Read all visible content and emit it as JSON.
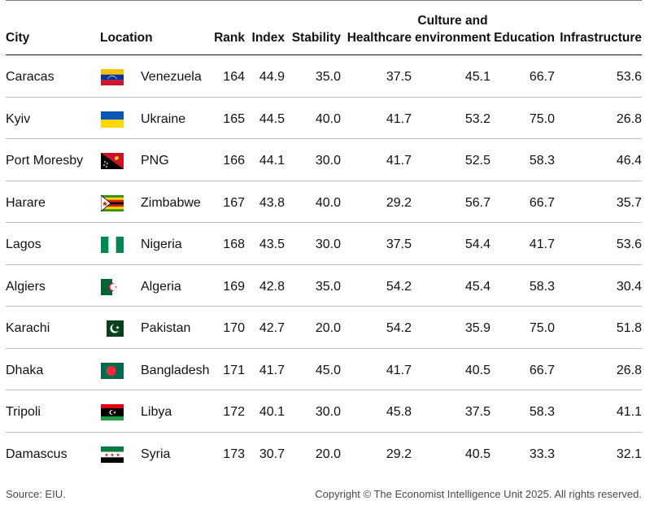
{
  "chart_data": {
    "type": "table",
    "columns": {
      "city": "City",
      "location": "Location",
      "rank": "Rank",
      "index": "Index",
      "stability": "Stability",
      "healthcare": "Healthcare",
      "culture_line1": "Culture and",
      "culture_line2": "environment",
      "education": "Education",
      "infrastructure": "Infrastructure"
    },
    "rows": [
      {
        "city": "Caracas",
        "location": "Venezuela",
        "flag": "venezuela-flag-icon",
        "rank": "164",
        "index": "44.9",
        "stability": "35.0",
        "healthcare": "37.5",
        "culture": "45.1",
        "education": "66.7",
        "infrastructure": "53.6"
      },
      {
        "city": "Kyiv",
        "location": "Ukraine",
        "flag": "ukraine-flag-icon",
        "rank": "165",
        "index": "44.5",
        "stability": "40.0",
        "healthcare": "41.7",
        "culture": "53.2",
        "education": "75.0",
        "infrastructure": "26.8"
      },
      {
        "city": "Port Moresby",
        "location": "PNG",
        "flag": "png-flag-icon",
        "rank": "166",
        "index": "44.1",
        "stability": "30.0",
        "healthcare": "41.7",
        "culture": "52.5",
        "education": "58.3",
        "infrastructure": "46.4"
      },
      {
        "city": "Harare",
        "location": "Zimbabwe",
        "flag": "zimbabwe-flag-icon",
        "rank": "167",
        "index": "43.8",
        "stability": "40.0",
        "healthcare": "29.2",
        "culture": "56.7",
        "education": "66.7",
        "infrastructure": "35.7"
      },
      {
        "city": "Lagos",
        "location": "Nigeria",
        "flag": "nigeria-flag-icon",
        "rank": "168",
        "index": "43.5",
        "stability": "30.0",
        "healthcare": "37.5",
        "culture": "54.4",
        "education": "41.7",
        "infrastructure": "53.6"
      },
      {
        "city": "Algiers",
        "location": "Algeria",
        "flag": "algeria-flag-icon",
        "rank": "169",
        "index": "42.8",
        "stability": "35.0",
        "healthcare": "54.2",
        "culture": "45.4",
        "education": "58.3",
        "infrastructure": "30.4"
      },
      {
        "city": "Karachi",
        "location": "Pakistan",
        "flag": "pakistan-flag-icon",
        "rank": "170",
        "index": "42.7",
        "stability": "20.0",
        "healthcare": "54.2",
        "culture": "35.9",
        "education": "75.0",
        "infrastructure": "51.8"
      },
      {
        "city": "Dhaka",
        "location": "Bangladesh",
        "flag": "bangladesh-flag-icon",
        "rank": "171",
        "index": "41.7",
        "stability": "45.0",
        "healthcare": "41.7",
        "culture": "40.5",
        "education": "66.7",
        "infrastructure": "26.8"
      },
      {
        "city": "Tripoli",
        "location": "Libya",
        "flag": "libya-flag-icon",
        "rank": "172",
        "index": "40.1",
        "stability": "30.0",
        "healthcare": "45.8",
        "culture": "37.5",
        "education": "58.3",
        "infrastructure": "41.1"
      },
      {
        "city": "Damascus",
        "location": "Syria",
        "flag": "syria-flag-icon",
        "rank": "173",
        "index": "30.7",
        "stability": "20.0",
        "healthcare": "29.2",
        "culture": "40.5",
        "education": "33.3",
        "infrastructure": "32.1"
      }
    ]
  },
  "footer": {
    "source": "Source: EIU.",
    "copyright": "Copyright © The Economist Intelligence Unit 2025. All rights reserved."
  },
  "colors": {
    "text": "#121212",
    "header_rule": "#121212",
    "row_rule": "#bdbdbd",
    "footer_text": "#4a4a4a"
  }
}
